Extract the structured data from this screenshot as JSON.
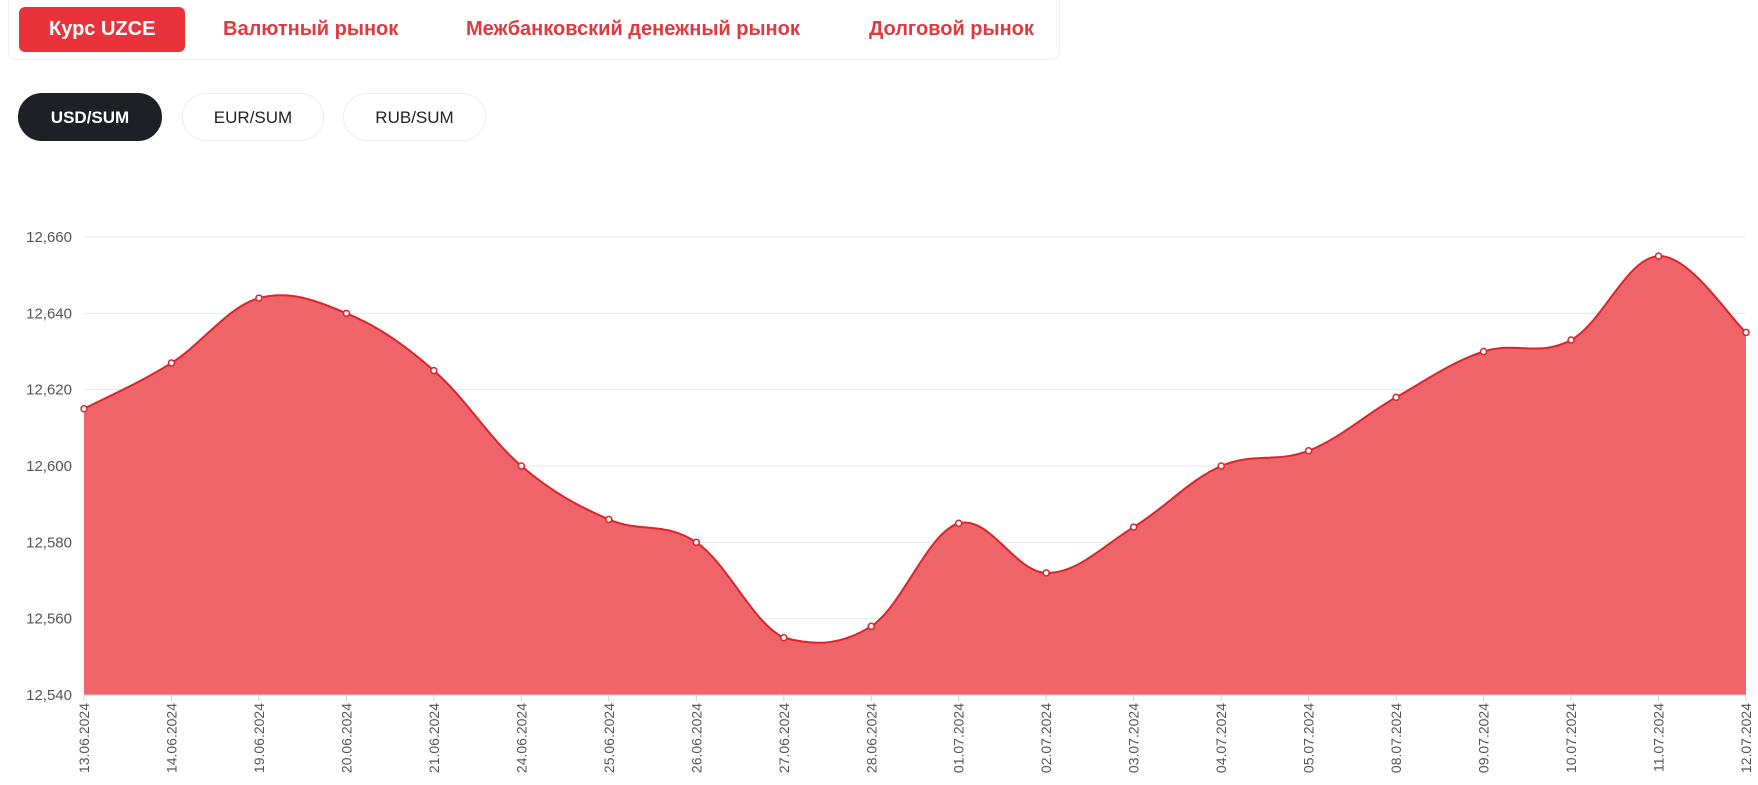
{
  "nav": {
    "tabs": [
      {
        "label": "Курс UZCE",
        "active": true
      },
      {
        "label": "Валютный рынок",
        "active": false
      },
      {
        "label": "Межбанковский денежный рынок",
        "active": false
      },
      {
        "label": "Долговой рынок",
        "active": false
      }
    ]
  },
  "pairs": [
    {
      "label": "USD/SUM",
      "active": true
    },
    {
      "label": "EUR/SUM",
      "active": false
    },
    {
      "label": "RUB/SUM",
      "active": false
    }
  ],
  "colors": {
    "accent": "#e8333a",
    "area_fill": "#f0656a",
    "line": "#d9252c",
    "active_pair": "#1f2026"
  },
  "chart_data": {
    "type": "area",
    "title": "",
    "xlabel": "",
    "ylabel": "",
    "ylim": [
      12540,
      12660
    ],
    "yticks": [
      "12,540",
      "12,560",
      "12,580",
      "12,600",
      "12,620",
      "12,640",
      "12,660"
    ],
    "grid": true,
    "categories": [
      "13.06.2024",
      "14.06.2024",
      "19.06.2024",
      "20.06.2024",
      "21.06.2024",
      "24.06.2024",
      "25.06.2024",
      "26.06.2024",
      "27.06.2024",
      "28.06.2024",
      "01.07.2024",
      "02.07.2024",
      "03.07.2024",
      "04.07.2024",
      "05.07.2024",
      "08.07.2024",
      "09.07.2024",
      "10.07.2024",
      "11.07.2024",
      "12.07.2024"
    ],
    "series": [
      {
        "values": [
          12615,
          12627,
          12644,
          12640,
          12625,
          12600,
          12586,
          12580,
          12555,
          12558,
          12585,
          12572,
          12584,
          12600,
          12604,
          12618,
          12630,
          12633,
          12655,
          12635
        ]
      }
    ]
  }
}
